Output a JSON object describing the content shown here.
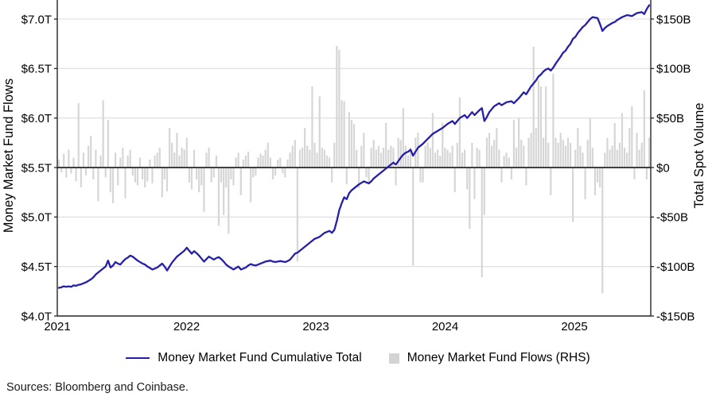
{
  "figure": {
    "sources_note": "Sources: Bloomberg and Coinbase."
  },
  "axes": {
    "left": {
      "title": "Money Market Fund Flows",
      "ticks": [
        {
          "value": 7.0,
          "label": "$7.0T"
        },
        {
          "value": 6.5,
          "label": "$6.5T"
        },
        {
          "value": 6.0,
          "label": "$6.0T"
        },
        {
          "value": 5.5,
          "label": "$5.5T"
        },
        {
          "value": 5.0,
          "label": "$5.0T"
        },
        {
          "value": 4.5,
          "label": "$4.5T"
        },
        {
          "value": 4.0,
          "label": "$4.0T"
        }
      ]
    },
    "right": {
      "title": "Total Spot Volume",
      "ticks": [
        {
          "value": 150,
          "label": "$150B"
        },
        {
          "value": 100,
          "label": "$100B"
        },
        {
          "value": 50,
          "label": "$50B"
        },
        {
          "value": 0,
          "label": "$0"
        },
        {
          "value": -50,
          "label": "-$50B"
        },
        {
          "value": -100,
          "label": "-$100B"
        },
        {
          "value": -150,
          "label": "-$150B"
        }
      ]
    },
    "x": {
      "ticks": [
        {
          "value": 2021,
          "label": "2021"
        },
        {
          "value": 2022,
          "label": "2022"
        },
        {
          "value": 2023,
          "label": "2023"
        },
        {
          "value": 2024,
          "label": "2024"
        },
        {
          "value": 2025,
          "label": "2025"
        }
      ]
    }
  },
  "legend": [
    {
      "type": "line",
      "color": "#251fa8",
      "label": "Money Market Fund Cumulative Total"
    },
    {
      "type": "square",
      "color": "#d3d3d3",
      "label": "Money Market Fund Flows (RHS)"
    }
  ],
  "colors": {
    "line": "#251fa8",
    "bar": "#d6d6d6",
    "grid": "#dcdcdc",
    "zero_line": "#404040",
    "frame": "#262626",
    "background": "#ffffff"
  },
  "chart_data": {
    "type": "combo",
    "frequency": "weekly",
    "x_start_year": 2021.0,
    "x_step_years": 0.01923,
    "x_range": [
      2021.0,
      2025.62
    ],
    "left_axis_range": [
      4.0,
      7.0
    ],
    "right_axis_range": [
      -150,
      150
    ],
    "grid": "horizontal",
    "legend_position": "bottom",
    "series": [
      {
        "name": "Money Market Fund Cumulative Total",
        "type": "line",
        "axis": "left",
        "unit": "$T",
        "color": "#251fa8",
        "values": [
          4.285,
          4.29,
          4.3,
          4.295,
          4.3,
          4.295,
          4.31,
          4.305,
          4.315,
          4.32,
          4.33,
          4.34,
          4.355,
          4.37,
          4.39,
          4.42,
          4.44,
          4.46,
          4.48,
          4.5,
          4.56,
          4.49,
          4.51,
          4.545,
          4.53,
          4.52,
          4.55,
          4.575,
          4.59,
          4.61,
          4.6,
          4.58,
          4.56,
          4.545,
          4.53,
          4.52,
          4.5,
          4.485,
          4.47,
          4.48,
          4.49,
          4.51,
          4.53,
          4.5,
          4.46,
          4.5,
          4.54,
          4.57,
          4.6,
          4.62,
          4.64,
          4.66,
          4.69,
          4.66,
          4.63,
          4.655,
          4.635,
          4.61,
          4.58,
          4.55,
          4.575,
          4.6,
          4.585,
          4.57,
          4.585,
          4.595,
          4.575,
          4.55,
          4.52,
          4.5,
          4.485,
          4.47,
          4.485,
          4.5,
          4.47,
          4.48,
          4.49,
          4.51,
          4.525,
          4.515,
          4.51,
          4.52,
          4.53,
          4.54,
          4.55,
          4.555,
          4.56,
          4.55,
          4.545,
          4.55,
          4.555,
          4.55,
          4.545,
          4.555,
          4.57,
          4.6,
          4.63,
          4.64,
          4.66,
          4.68,
          4.7,
          4.72,
          4.74,
          4.76,
          4.78,
          4.79,
          4.8,
          4.82,
          4.84,
          4.85,
          4.86,
          4.84,
          4.87,
          4.96,
          5.07,
          5.14,
          5.2,
          5.18,
          5.24,
          5.27,
          5.29,
          5.31,
          5.33,
          5.345,
          5.36,
          5.35,
          5.34,
          5.36,
          5.39,
          5.41,
          5.43,
          5.45,
          5.47,
          5.49,
          5.51,
          5.53,
          5.55,
          5.53,
          5.565,
          5.6,
          5.63,
          5.65,
          5.66,
          5.68,
          5.62,
          5.66,
          5.7,
          5.72,
          5.74,
          5.765,
          5.79,
          5.815,
          5.84,
          5.855,
          5.87,
          5.885,
          5.9,
          5.92,
          5.94,
          5.955,
          5.97,
          5.94,
          5.97,
          6.0,
          6.015,
          6.03,
          6.0,
          6.03,
          6.06,
          6.03,
          6.055,
          6.08,
          6.1,
          5.97,
          6.01,
          6.06,
          6.09,
          6.12,
          6.135,
          6.15,
          6.13,
          6.145,
          6.16,
          6.165,
          6.17,
          6.15,
          6.175,
          6.2,
          6.23,
          6.26,
          6.24,
          6.28,
          6.32,
          6.35,
          6.38,
          6.42,
          6.44,
          6.47,
          6.49,
          6.5,
          6.48,
          6.51,
          6.55,
          6.585,
          6.62,
          6.66,
          6.68,
          6.72,
          6.75,
          6.8,
          6.82,
          6.86,
          6.89,
          6.92,
          6.94,
          6.97,
          7.0,
          7.02,
          7.015,
          7.01,
          6.95,
          6.88,
          6.91,
          6.93,
          6.945,
          6.96,
          6.97,
          6.99,
          7.005,
          7.02,
          7.03,
          7.04,
          7.035,
          7.03,
          7.045,
          7.06,
          7.065,
          7.07,
          7.05,
          7.1,
          7.14
        ]
      },
      {
        "name": "Money Market Fund Flows (RHS)",
        "type": "bar",
        "axis": "right",
        "unit": "$B",
        "color": "#d6d6d6",
        "values": [
          8,
          -5,
          14,
          -10,
          18,
          -6,
          10,
          -14,
          65,
          -20,
          15,
          -8,
          22,
          32,
          -12,
          18,
          -34,
          12,
          68,
          -10,
          48,
          -25,
          -36,
          15,
          -18,
          10,
          20,
          -31,
          12,
          18,
          -8,
          -15,
          -18,
          10,
          -12,
          -20,
          -14,
          8,
          -16,
          12,
          15,
          20,
          -30,
          -12,
          -24,
          40,
          25,
          15,
          35,
          12,
          20,
          18,
          30,
          -15,
          -22,
          18,
          -12,
          -25,
          -18,
          -45,
          15,
          20,
          -15,
          -10,
          12,
          -59,
          -15,
          -48,
          -20,
          -67,
          -12,
          -18,
          10,
          15,
          -28,
          8,
          12,
          16,
          -35,
          -10,
          -8,
          10,
          14,
          12,
          18,
          25,
          10,
          -12,
          -8,
          8,
          10,
          -6,
          -10,
          8,
          15,
          22,
          28,
          -95,
          18,
          20,
          40,
          22,
          18,
          82,
          25,
          15,
          72,
          20,
          18,
          12,
          10,
          -15,
          25,
          123,
          119,
          68,
          67,
          -17,
          56,
          48,
          44,
          18,
          -21,
          22,
          35,
          -10,
          -15,
          20,
          28,
          18,
          22,
          15,
          20,
          45,
          18,
          22,
          20,
          -18,
          30,
          28,
          60,
          22,
          12,
          20,
          -99,
          30,
          35,
          -15,
          -15,
          22,
          25,
          20,
          55,
          15,
          18,
          12,
          45,
          20,
          18,
          15,
          22,
          -25,
          25,
          71,
          15,
          18,
          -22,
          -62,
          25,
          -32,
          20,
          18,
          -111,
          -48,
          30,
          35,
          22,
          28,
          40,
          18,
          -15,
          12,
          15,
          10,
          -12,
          48,
          20,
          50,
          28,
          22,
          -18,
          30,
          35,
          122,
          40,
          88,
          82,
          30,
          82,
          25,
          -28,
          95,
          30,
          25,
          35,
          28,
          22,
          30,
          25,
          -55,
          18,
          40,
          22,
          15,
          -32,
          28,
          50,
          20,
          -28,
          -15,
          -20,
          -127,
          15,
          30,
          18,
          22,
          45,
          18,
          25,
          55,
          20,
          15,
          40,
          62,
          -12,
          35,
          18,
          25,
          78,
          -12,
          30
        ]
      }
    ]
  }
}
